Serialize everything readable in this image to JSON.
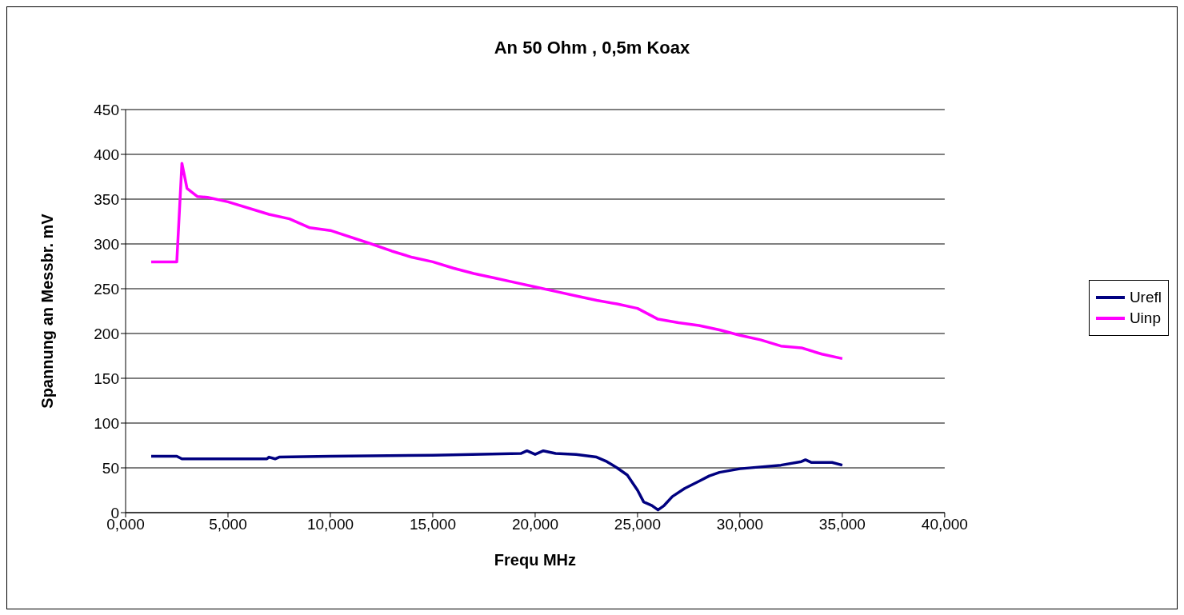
{
  "chart_data": {
    "type": "line",
    "title": "An 50 Ohm , 0,5m Koax",
    "xlabel": "Frequ MHz",
    "ylabel": "Spannung an Messbr. mV",
    "xlim": [
      0,
      40
    ],
    "xticks": [
      {
        "value": 0,
        "label": "0,000"
      },
      {
        "value": 5,
        "label": "5,000"
      },
      {
        "value": 10,
        "label": "10,000"
      },
      {
        "value": 15,
        "label": "15,000"
      },
      {
        "value": 20,
        "label": "20,000"
      },
      {
        "value": 25,
        "label": "25,000"
      },
      {
        "value": 30,
        "label": "30,000"
      },
      {
        "value": 35,
        "label": "35,000"
      },
      {
        "value": 40,
        "label": "40,000"
      }
    ],
    "ylim": [
      0,
      450
    ],
    "yticks": [
      0,
      50,
      100,
      150,
      200,
      250,
      300,
      350,
      400,
      450
    ],
    "grid": "y",
    "legend": "right",
    "marker": "none",
    "line_style": "solid",
    "series": [
      {
        "name": "Urefl",
        "color": "#000080",
        "x": [
          1.25,
          2.5,
          2.75,
          6.9,
          7,
          7.3,
          7.5,
          10,
          15,
          19.3,
          19.6,
          20,
          20.4,
          21,
          22,
          23,
          23.5,
          24,
          24.5,
          25,
          25.3,
          25.7,
          26,
          26.3,
          26.7,
          27.3,
          28,
          28.5,
          29,
          30,
          31,
          32,
          33,
          33.2,
          33.5,
          34.5,
          35
        ],
        "values": [
          63,
          63,
          60,
          60,
          62,
          60,
          62,
          63,
          64,
          66,
          69,
          65,
          69,
          66,
          65,
          62,
          57,
          50,
          42,
          25,
          12,
          8,
          3,
          8,
          18,
          27,
          35,
          41,
          45,
          49,
          51,
          53,
          57,
          59,
          56,
          56,
          53
        ]
      },
      {
        "name": "Uinp",
        "color": "#ff00ff",
        "x": [
          1.25,
          2.5,
          2.75,
          3,
          3.5,
          4,
          5,
          7,
          8,
          9,
          10,
          12,
          13,
          14,
          15,
          16,
          17,
          18,
          19,
          20,
          21,
          22,
          23,
          24,
          25,
          26,
          27,
          28,
          29,
          30,
          31,
          32,
          33,
          34,
          35
        ],
        "values": [
          280,
          280,
          390,
          362,
          353,
          352,
          347,
          333,
          328,
          318,
          315,
          300,
          292,
          285,
          280,
          273,
          267,
          262,
          257,
          252,
          247,
          242,
          237,
          233,
          228,
          216,
          212,
          209,
          204,
          198,
          193,
          186,
          184,
          177,
          172
        ]
      }
    ]
  }
}
